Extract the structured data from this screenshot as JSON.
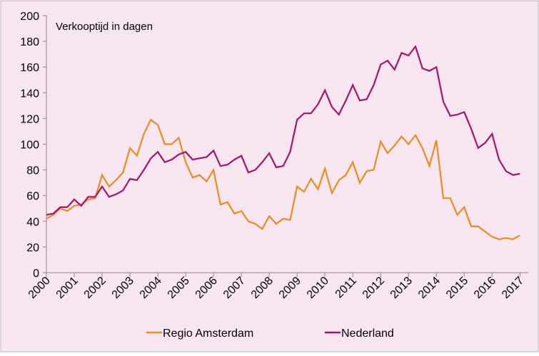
{
  "chart_data": {
    "type": "line",
    "title": "Verkooptijd in dagen",
    "x": [
      2000,
      2000.25,
      2000.5,
      2000.75,
      2001,
      2001.25,
      2001.5,
      2001.75,
      2002,
      2002.25,
      2002.5,
      2002.75,
      2003,
      2003.25,
      2003.5,
      2003.75,
      2004,
      2004.25,
      2004.5,
      2004.75,
      2005,
      2005.25,
      2005.5,
      2005.75,
      2006,
      2006.25,
      2006.5,
      2006.75,
      2007,
      2007.25,
      2007.5,
      2007.75,
      2008,
      2008.25,
      2008.5,
      2008.75,
      2009,
      2009.25,
      2009.5,
      2009.75,
      2010,
      2010.25,
      2010.5,
      2010.75,
      2011,
      2011.25,
      2011.5,
      2011.75,
      2012,
      2012.25,
      2012.5,
      2012.75,
      2013,
      2013.25,
      2013.5,
      2013.75,
      2014,
      2014.25,
      2014.5,
      2014.75,
      2015,
      2015.25,
      2015.5,
      2015.75,
      2016,
      2016.25,
      2016.5,
      2016.75,
      2017
    ],
    "series": [
      {
        "name": "Regio Amsterdam",
        "color": "#ed8b1d",
        "values": [
          42,
          45,
          50,
          48,
          52,
          53,
          57,
          58,
          76,
          67,
          72,
          78,
          97,
          91,
          108,
          119,
          115,
          100,
          100,
          105,
          86,
          74,
          76,
          71,
          80,
          53,
          55,
          46,
          48,
          40,
          38,
          34,
          44,
          38,
          42,
          41,
          67,
          63,
          73,
          65,
          81,
          62,
          72,
          76,
          86,
          70,
          79,
          80,
          102,
          93,
          99,
          106,
          100,
          107,
          97,
          83,
          103,
          58,
          58,
          45,
          51,
          36,
          36,
          32,
          28,
          26,
          27,
          26,
          29
        ]
      },
      {
        "name": "Nederland",
        "color": "#a8126a",
        "values": [
          45,
          46,
          51,
          51,
          57,
          52,
          59,
          59,
          67,
          59,
          61,
          64,
          73,
          72,
          80,
          89,
          94,
          86,
          88,
          92,
          94,
          88,
          89,
          90,
          95,
          83,
          84,
          88,
          91,
          78,
          80,
          86,
          93,
          82,
          83,
          94,
          119,
          124,
          124,
          131,
          142,
          129,
          123,
          134,
          146,
          134,
          135,
          146,
          162,
          165,
          158,
          171,
          169,
          176,
          159,
          157,
          160,
          133,
          122,
          123,
          125,
          112,
          97,
          101,
          108,
          88,
          79,
          76,
          77
        ]
      }
    ],
    "xlim": [
      2000,
      2017.3
    ],
    "xticks": [
      2000,
      2001,
      2002,
      2003,
      2004,
      2005,
      2006,
      2007,
      2008,
      2009,
      2010,
      2011,
      2012,
      2013,
      2014,
      2015,
      2016,
      2017
    ],
    "ylim": [
      0,
      200
    ],
    "yticks": [
      0,
      20,
      40,
      60,
      80,
      100,
      120,
      140,
      160,
      180,
      200
    ]
  }
}
